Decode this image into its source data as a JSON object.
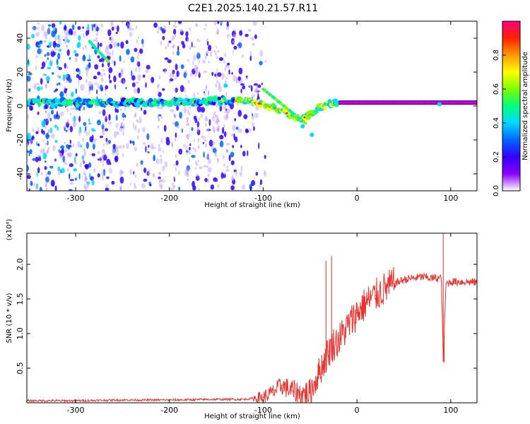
{
  "chart_data": [
    {
      "type": "heatmap",
      "title": "C2E1.2025.140.21.57.R11",
      "xlabel": "Height of straight line (km)",
      "ylabel": "Frequency (Hz)",
      "xlim": [
        -352,
        128
      ],
      "ylim": [
        -50,
        50
      ],
      "xticks": [
        -300,
        -200,
        -100,
        0,
        100
      ],
      "yticks": [
        -40,
        -20,
        0,
        20,
        40
      ],
      "colorbar": {
        "label": "Normalized spectral amplitude",
        "range": [
          0.0,
          1.0
        ],
        "ticks": [
          0.0,
          0.2,
          0.4,
          0.6,
          0.8
        ],
        "colormap": [
          "#ffffff",
          "#8a00ff",
          "#3300ff",
          "#0066ff",
          "#00d9ff",
          "#00ff80",
          "#7fff00",
          "#ffff00",
          "#ff9900",
          "#ff2200",
          "#ff0080"
        ]
      },
      "ridge": {
        "description_points_height_km": [
          -352,
          -300,
          -250,
          -200,
          -150,
          -120,
          -100,
          -80,
          -60,
          -50,
          -40,
          -30,
          -20,
          0,
          50,
          85,
          100,
          128
        ],
        "frequency_hz": [
          2,
          2,
          2,
          2,
          3,
          3,
          1,
          -3,
          -8,
          -5,
          -1,
          1,
          2,
          2,
          2,
          2,
          2,
          2
        ]
      }
    },
    {
      "type": "line",
      "xlabel": "Height of straight line (km)",
      "ylabel": "SNR (10 * v/v)",
      "y_multiplier": "(x10⁴)",
      "xlim": [
        -352,
        128
      ],
      "ylim": [
        0,
        2.45
      ],
      "xticks": [
        -300,
        -200,
        -100,
        0,
        100
      ],
      "yticks": [
        0.5,
        1.0,
        1.5,
        2.0
      ],
      "color": "#e8322e",
      "x": [
        -352,
        -300,
        -250,
        -200,
        -150,
        -120,
        -100,
        -90,
        -80,
        -70,
        -60,
        -50,
        -45,
        -40,
        -35,
        -30,
        -25,
        -20,
        -15,
        -10,
        -5,
        0,
        10,
        20,
        30,
        40,
        50,
        60,
        70,
        80,
        90,
        92,
        95,
        100,
        110,
        128
      ],
      "y": [
        0.03,
        0.03,
        0.04,
        0.04,
        0.05,
        0.05,
        0.08,
        0.15,
        0.25,
        0.18,
        0.12,
        0.15,
        0.3,
        0.45,
        0.6,
        0.75,
        0.85,
        0.9,
        1.0,
        1.1,
        1.2,
        1.3,
        1.45,
        1.55,
        1.65,
        1.72,
        1.78,
        1.8,
        1.82,
        1.8,
        1.8,
        0.6,
        1.72,
        1.75,
        1.75,
        1.74
      ],
      "spikes": [
        {
          "x": -33,
          "y": 2.05
        },
        {
          "x": -27,
          "y": 2.12
        },
        {
          "x": 92,
          "y": 2.45
        },
        {
          "x": 93,
          "y": 0.58
        }
      ]
    }
  ]
}
